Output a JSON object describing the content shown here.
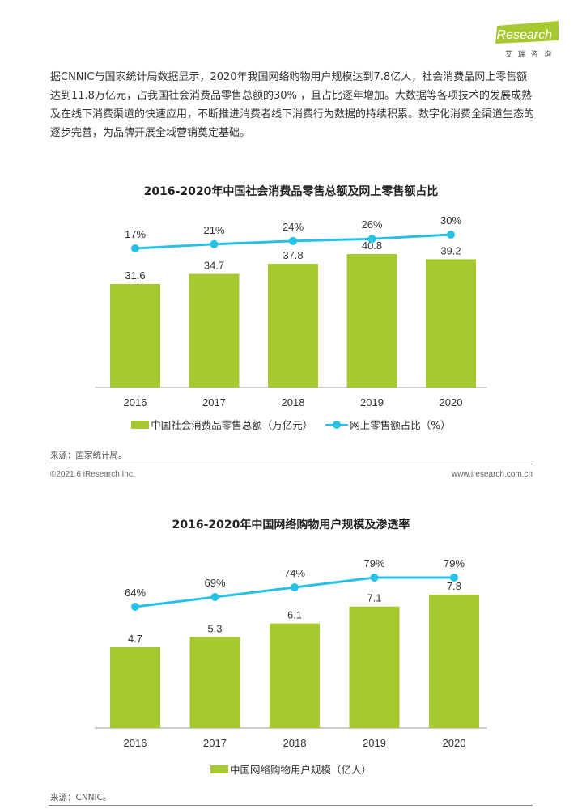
{
  "header": {
    "logo_text": "iResearch",
    "logo_sub": "艾瑞咨询"
  },
  "intro_text": "据CNNIC与国家统计局数据显示，2020年我国网络购物用户规模达到7.8亿人，社会消费品网上零售额达到11.8万亿元，占我国社会消费品零售总额的30% ，且占比逐年增加。大数据等各项技术的发展成熟及在线下消费渠道的快速应用，不断推进消费者线下消费行为数据的持续积累。数字化消费全渠道生态的逐步完善，为品牌开展全域营销奠定基础。",
  "chart_data": [
    {
      "type": "bar",
      "title": "2016-2020年中国社会消费品零售总额及网上零售额占比",
      "categories": [
        "2016",
        "2017",
        "2018",
        "2019",
        "2020"
      ],
      "series": [
        {
          "name": "中国社会消费品零售总额（万亿元）",
          "type": "bar",
          "values": [
            31.6,
            34.7,
            37.8,
            40.8,
            39.2
          ],
          "labels": [
            "31.6",
            "34.7",
            "37.8",
            "40.8",
            "39.2"
          ],
          "color": "#a5c92f"
        },
        {
          "name": "网上零售额占比（%）",
          "type": "line",
          "values": [
            17,
            21,
            24,
            26,
            30
          ],
          "labels": [
            "17%",
            "21%",
            "24%",
            "26%",
            "30%"
          ],
          "color": "#27c1e6"
        }
      ],
      "legend_position": "bottom",
      "grid": false
    },
    {
      "type": "bar",
      "title": "2016-2020年中国网络购物用户规模及渗透率",
      "categories": [
        "2016",
        "2017",
        "2018",
        "2019",
        "2020"
      ],
      "series": [
        {
          "name": "中国网络购物用户规模（亿人）",
          "type": "bar",
          "values": [
            4.7,
            5.3,
            6.1,
            7.1,
            7.8
          ],
          "labels": [
            "4.7",
            "5.3",
            "6.1",
            "7.1",
            "7.8"
          ],
          "color": "#a5c92f"
        },
        {
          "type": "line",
          "values": [
            64,
            69,
            74,
            79,
            79
          ],
          "labels": [
            "64%",
            "69%",
            "74%",
            "79%",
            "79%"
          ],
          "color": "#27c1e6"
        }
      ],
      "legend_position": "bottom",
      "grid": false
    }
  ],
  "source_1": "来源：国家统计局。",
  "source_2": "来源：CNNIC。",
  "footer": {
    "copyright": "©2021.6 iResearch Inc.",
    "website": "www.iresearch.com.cn"
  }
}
